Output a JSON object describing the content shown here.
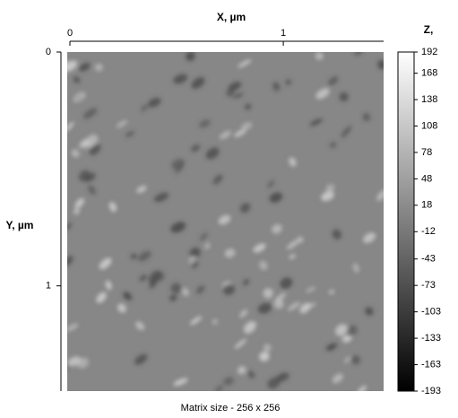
{
  "chart_data": {
    "type": "image",
    "xlabel": "X, µm",
    "ylabel": "Y, µm",
    "colorbar_label": "Z,",
    "xlim": [
      0,
      1.47
    ],
    "xticks": [
      0,
      1
    ],
    "ylim": [
      0,
      1.45
    ],
    "yticks": [
      0,
      1
    ],
    "clim": [
      -193,
      192
    ],
    "cticks": [
      192,
      168,
      138,
      108,
      78,
      48,
      18,
      -12,
      -43,
      -73,
      -103,
      -133,
      -163,
      -193
    ],
    "colormap": [
      "#000000",
      "#ffffff"
    ],
    "caption": "Matrix size - 256 x 256"
  }
}
